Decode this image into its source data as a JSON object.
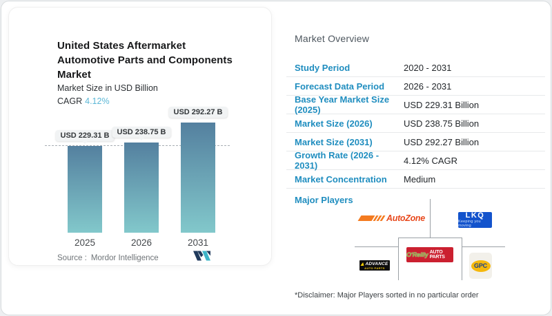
{
  "card": {
    "title_lines": [
      "United States Aftermarket",
      "Automotive Parts and Components",
      "Market"
    ],
    "subtitle": "Market Size in USD Billion",
    "cagr_label": "CAGR",
    "cagr_value": "4.12%",
    "source_label": "Source :",
    "source_value": "Mordor Intelligence"
  },
  "chart_data": {
    "type": "bar",
    "title": "United States Aftermarket Automotive Parts and Components Market",
    "ylabel": "Market Size in USD Billion",
    "categories": [
      "2025",
      "2026",
      "2031"
    ],
    "values": [
      229.31,
      238.75,
      292.27
    ],
    "bar_labels": [
      "USD 229.31 B",
      "USD 238.75 B",
      "USD 292.27 B"
    ],
    "cagr_percent": 4.12,
    "baseline": {
      "value": 229.31,
      "style": "dashed"
    },
    "grid": false,
    "legend": false,
    "bar_color_top": "#54809f",
    "bar_color_bottom": "#82c8cb"
  },
  "overview": {
    "heading": "Market Overview",
    "rows": [
      {
        "label": "Study Period",
        "value": "2020 - 2031"
      },
      {
        "label": "Forecast Data Period",
        "value": "2026 - 2031"
      },
      {
        "label": "Base Year Market Size (2025)",
        "value": "USD 229.31 Billion"
      },
      {
        "label": "Market Size (2026)",
        "value": "USD 238.75 Billion"
      },
      {
        "label": "Market Size (2031)",
        "value": "USD 292.27 Billion"
      },
      {
        "label": "Growth Rate (2026 - 2031)",
        "value": "4.12% CAGR"
      },
      {
        "label": "Market Concentration",
        "value": "Medium"
      }
    ],
    "major_players_label": "Major Players",
    "players": {
      "autozone": {
        "name": "AutoZone"
      },
      "lkq": {
        "name": "LKQ",
        "tagline": "Keeping you moving"
      },
      "oreilly": {
        "brand": "O'Reilly",
        "suffix": "AUTO PARTS"
      },
      "advance": {
        "name": "ADVANCE",
        "suffix": "AUTO PARTS"
      },
      "gpc": {
        "name": "GPC"
      }
    },
    "disclaimer": "*Disclaimer: Major Players sorted in no particular order"
  },
  "colors": {
    "accent_blue": "#1f8dbf",
    "cagr_teal": "#5bb7d6"
  }
}
